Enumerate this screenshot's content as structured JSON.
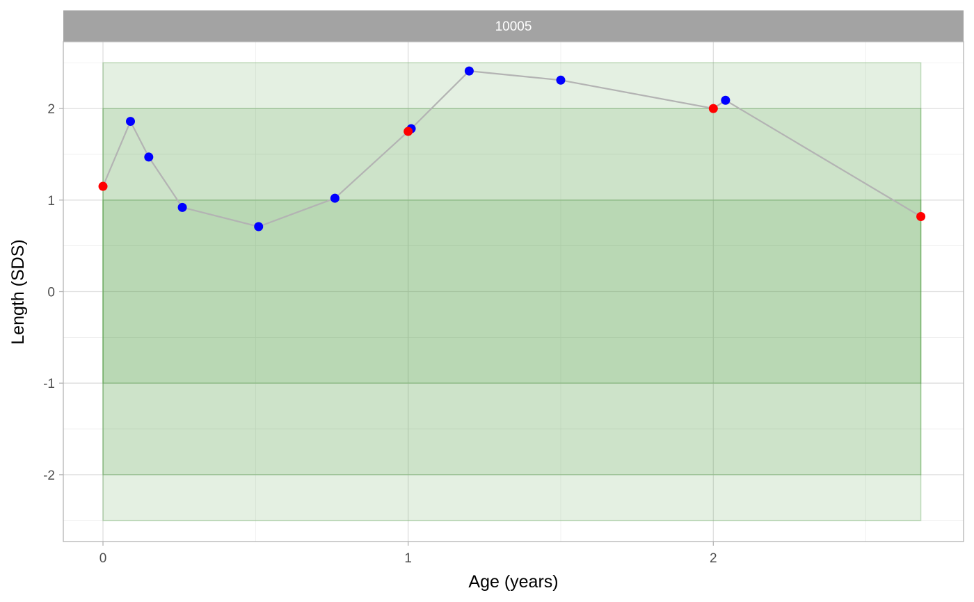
{
  "chart_data": {
    "type": "scatter",
    "panel_title": "10005",
    "xlabel": "Age (years)",
    "ylabel": "Length (SDS)",
    "xlim": [
      -0.13,
      2.82
    ],
    "ylim": [
      -2.73,
      2.73
    ],
    "x_ticks": [
      0,
      1,
      2
    ],
    "x_tick_labels": [
      "0",
      "1",
      "2"
    ],
    "y_ticks": [
      -2,
      -1,
      0,
      1,
      2
    ],
    "y_tick_labels": [
      "-2",
      "-1",
      "0",
      "1",
      "2"
    ],
    "grid": true,
    "bands": [
      {
        "y0": -2.5,
        "y1": 2.5,
        "x0": 0,
        "x1": 2.68,
        "color": "#4a9a3a",
        "opacity": 0.15
      },
      {
        "y0": -2,
        "y1": 2,
        "x0": 0,
        "x1": 2.68,
        "color": "#4a9a3a",
        "opacity": 0.15
      },
      {
        "y0": -1,
        "y1": 1,
        "x0": 0,
        "x1": 2.68,
        "color": "#4a9a3a",
        "opacity": 0.15
      }
    ],
    "series": [
      {
        "color": "#0000ff",
        "points": [
          {
            "x": 0.09,
            "y": 1.86
          },
          {
            "x": 0.15,
            "y": 1.47
          },
          {
            "x": 0.26,
            "y": 0.92
          },
          {
            "x": 0.51,
            "y": 0.71
          },
          {
            "x": 0.76,
            "y": 1.02
          },
          {
            "x": 1.01,
            "y": 1.78
          },
          {
            "x": 1.2,
            "y": 2.41
          },
          {
            "x": 1.5,
            "y": 2.31
          },
          {
            "x": 2.04,
            "y": 2.09
          }
        ]
      },
      {
        "color": "#ff0000",
        "points": [
          {
            "x": 0.0,
            "y": 1.15
          },
          {
            "x": 1.0,
            "y": 1.75
          },
          {
            "x": 2.0,
            "y": 2.0
          },
          {
            "x": 2.68,
            "y": 0.82
          }
        ]
      }
    ],
    "line_color": "#b3b3b3"
  }
}
